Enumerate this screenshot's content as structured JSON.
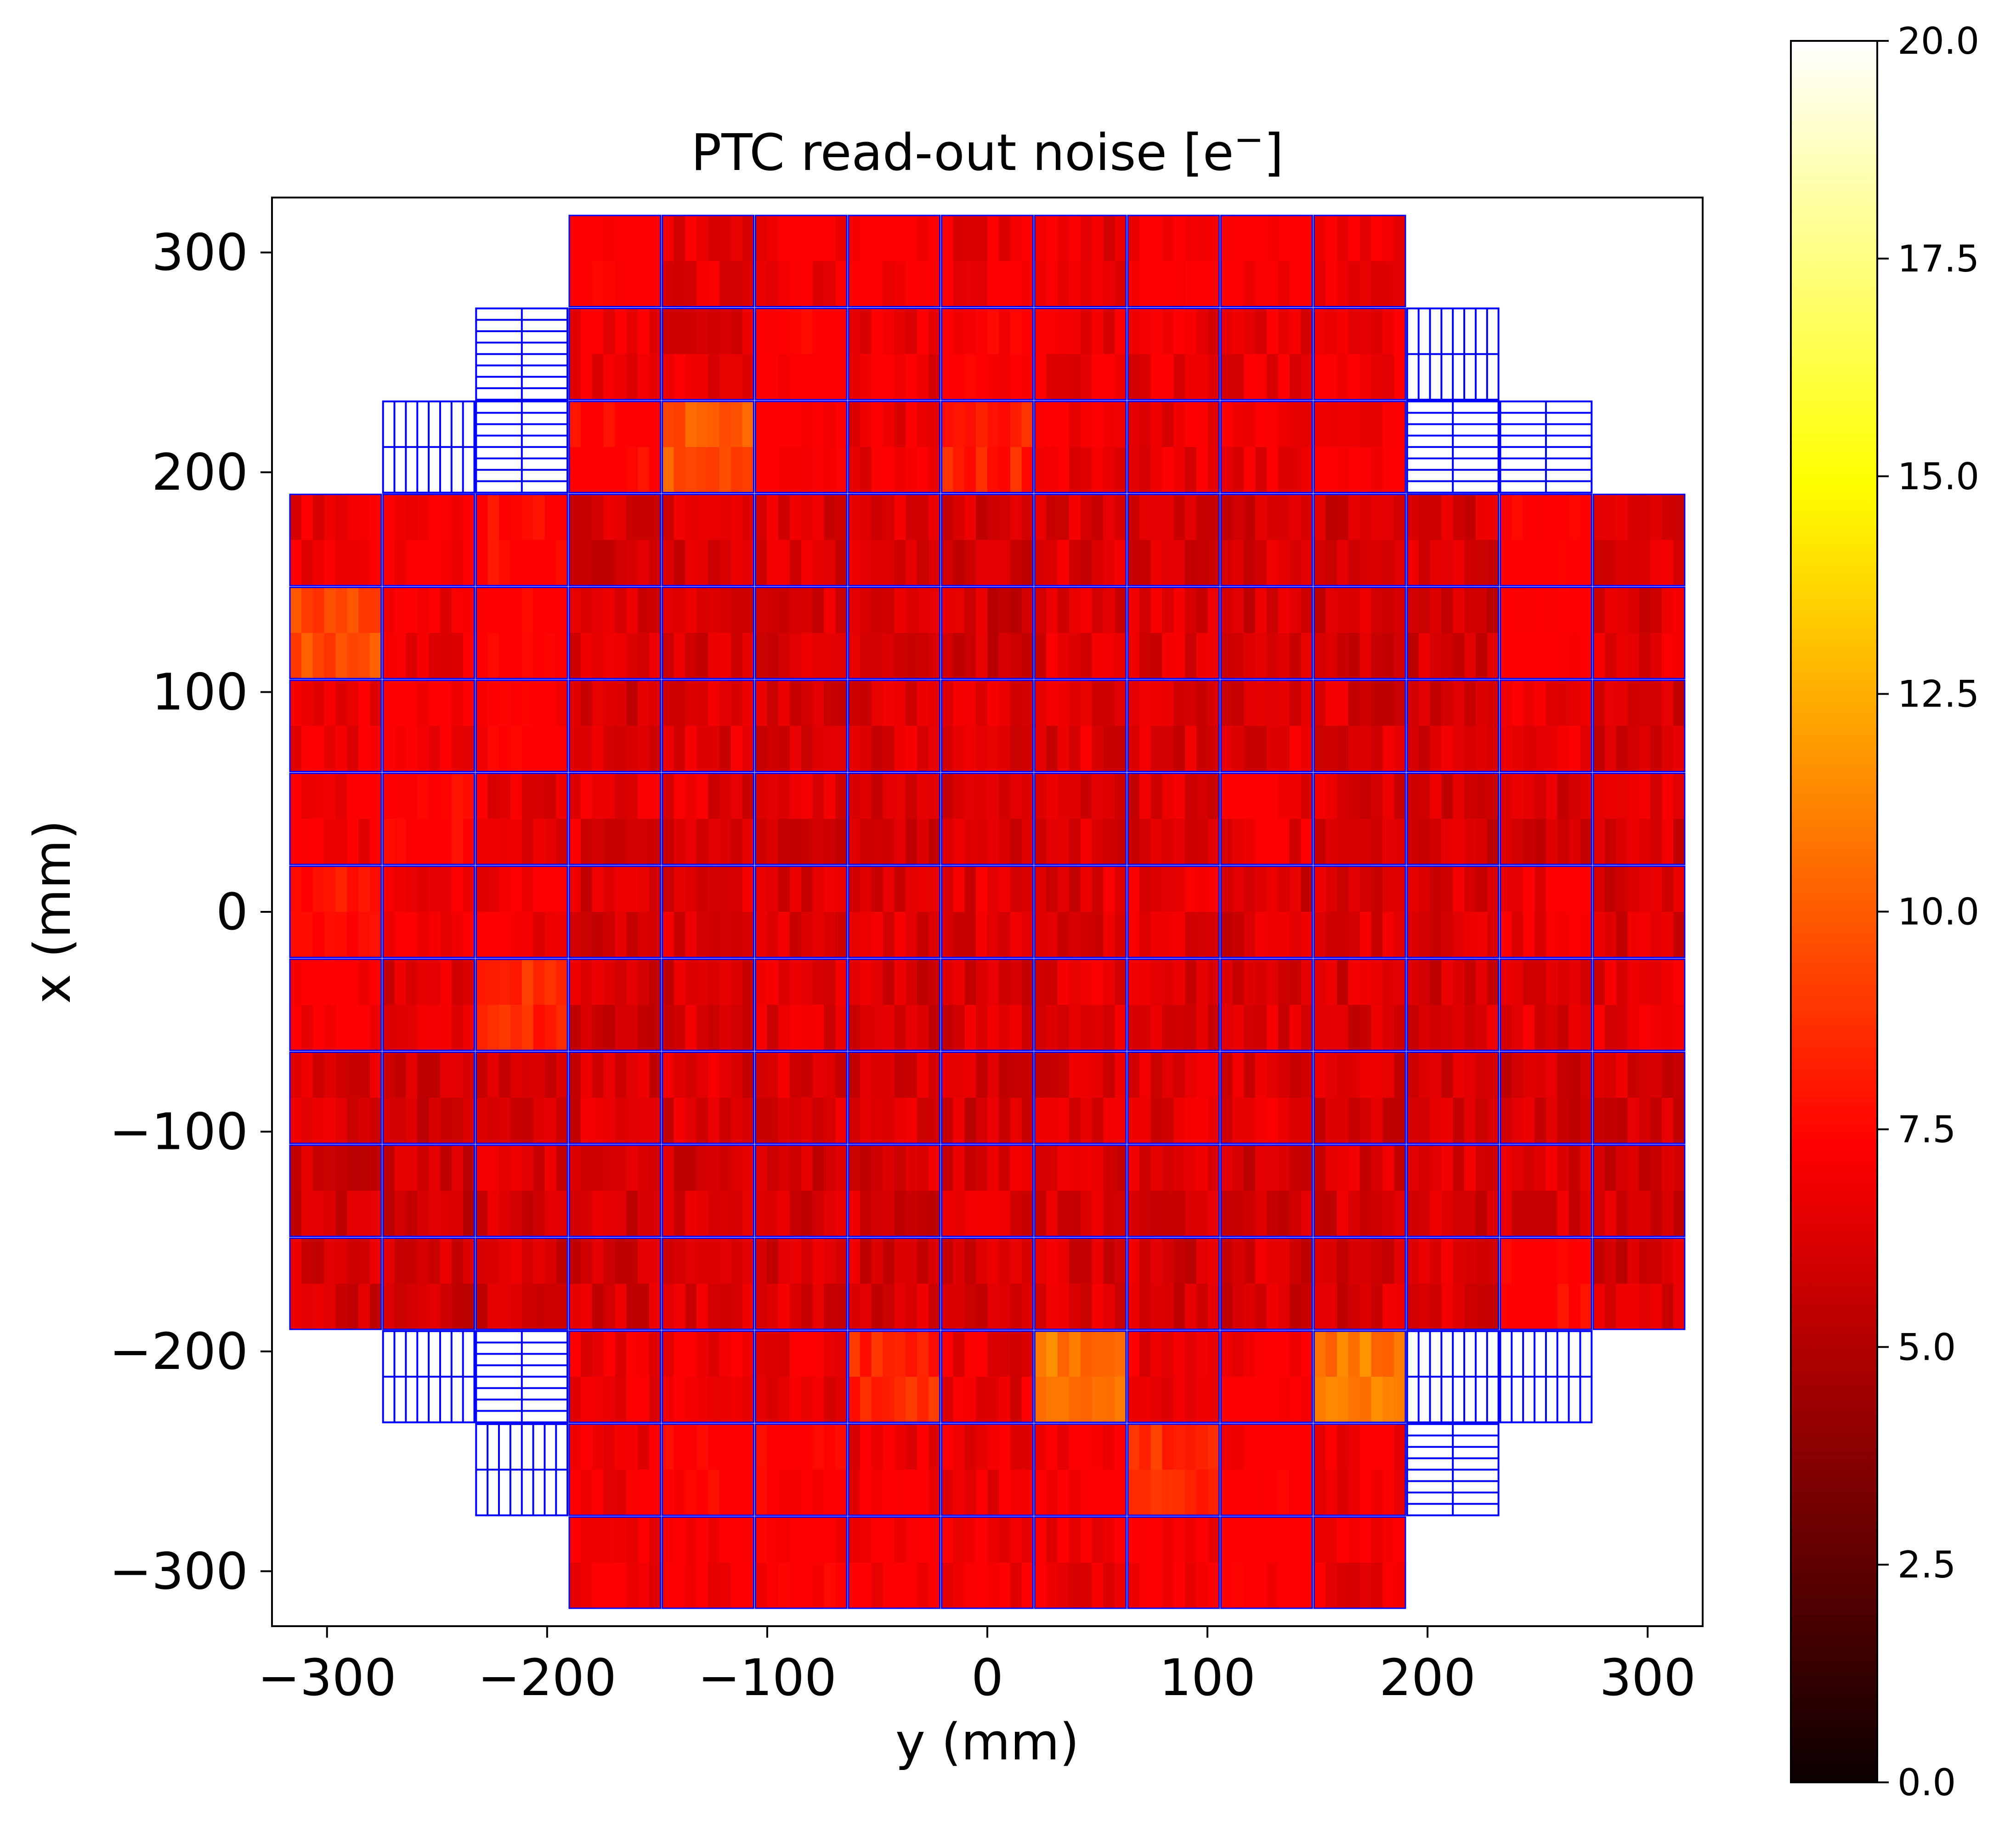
{
  "chart_data": {
    "type": "heatmap",
    "title": "PTC read-out noise [e⁻]",
    "title_text": "PTC read-out noise [e",
    "title_sup": "−",
    "title_close": "]",
    "xlabel": "y (mm)",
    "ylabel": "x (mm)",
    "xlim": [
      -325,
      325
    ],
    "ylim": [
      -325,
      325
    ],
    "xticks": [
      -300,
      -200,
      -100,
      0,
      100,
      200,
      300
    ],
    "yticks": [
      -300,
      -200,
      -100,
      0,
      100,
      200,
      300
    ],
    "xtick_labels": [
      "−300",
      "−200",
      "−100",
      "0",
      "100",
      "200",
      "300"
    ],
    "ytick_labels": [
      "−300",
      "−200",
      "−100",
      "0",
      "100",
      "200",
      "300"
    ],
    "colormap": "hot",
    "colorbar": {
      "min": 0.0,
      "max": 20.0,
      "ticks": [
        0.0,
        2.5,
        5.0,
        7.5,
        10.0,
        12.5,
        15.0,
        17.5,
        20.0
      ],
      "tick_labels": [
        "0.0",
        "2.5",
        "5.0",
        "7.5",
        "10.0",
        "12.5",
        "15.0",
        "17.5",
        "20.0"
      ]
    },
    "raft_outline_color": "#0000ff",
    "grid": false,
    "detector_pitch_mm": 42.3,
    "detector_size_mm": 41.5,
    "detector_columns_y_mm": [
      -296.1,
      -253.8,
      -211.5,
      -169.2,
      -126.9,
      -84.6,
      -42.3,
      0,
      42.3,
      84.6,
      126.9,
      169.2,
      211.5,
      253.8,
      296.1
    ],
    "detector_rows_x_mm": [
      -296.1,
      -253.8,
      -211.5,
      -169.2,
      -126.9,
      -84.6,
      -42.3,
      0,
      42.3,
      84.6,
      126.9,
      169.2,
      211.5,
      253.8,
      296.1
    ],
    "amplifier_layout": {
      "columns": 8,
      "rows": 2
    },
    "typical_noise_e": 5.8,
    "detector_noise_map_e": [
      [
        0,
        0,
        0,
        6.9,
        5.8,
        6.2,
        6.6,
        6.0,
        5.9,
        6.6,
        6.4,
        6.3,
        0,
        0,
        0
      ],
      [
        0,
        0,
        0,
        6.1,
        5.8,
        6.9,
        5.9,
        6.8,
        6.1,
        5.8,
        6.0,
        6.3,
        0,
        0,
        0
      ],
      [
        0,
        0,
        0,
        7.3,
        9.8,
        6.8,
        6.1,
        8.2,
        6.2,
        5.9,
        6.1,
        6.5,
        0,
        0,
        0
      ],
      [
        6.0,
        6.5,
        7.4,
        5.4,
        5.5,
        5.6,
        5.5,
        5.3,
        5.5,
        5.5,
        5.4,
        5.2,
        5.5,
        7.1,
        5.5
      ],
      [
        9.5,
        6.1,
        7.2,
        5.5,
        5.5,
        5.6,
        5.4,
        5.2,
        5.6,
        5.6,
        5.4,
        5.3,
        5.2,
        7.0,
        5.6
      ],
      [
        6.1,
        6.4,
        6.9,
        5.4,
        5.6,
        5.5,
        5.6,
        5.5,
        5.6,
        5.4,
        5.6,
        5.4,
        5.4,
        6.3,
        5.5
      ],
      [
        6.4,
        7.1,
        5.9,
        5.6,
        5.6,
        5.5,
        5.4,
        5.4,
        5.5,
        5.5,
        5.9,
        5.5,
        5.3,
        5.4,
        5.5
      ],
      [
        7.6,
        6.4,
        6.0,
        5.4,
        5.5,
        5.6,
        5.5,
        5.6,
        5.6,
        5.6,
        5.4,
        5.6,
        5.4,
        6.0,
        5.5
      ],
      [
        6.6,
        5.5,
        8.5,
        5.3,
        5.4,
        5.5,
        5.4,
        5.4,
        5.6,
        5.5,
        5.5,
        5.4,
        5.3,
        5.6,
        5.6
      ],
      [
        5.4,
        5.1,
        5.4,
        5.4,
        5.5,
        5.4,
        5.4,
        5.3,
        5.5,
        5.6,
        5.6,
        5.4,
        5.3,
        5.3,
        5.4
      ],
      [
        5.2,
        5.1,
        5.5,
        5.2,
        5.4,
        5.3,
        5.4,
        5.5,
        5.5,
        5.5,
        5.3,
        5.4,
        5.4,
        5.5,
        5.3
      ],
      [
        5.3,
        5.2,
        5.4,
        5.3,
        5.4,
        5.5,
        5.4,
        5.4,
        5.5,
        5.3,
        5.4,
        5.4,
        5.5,
        7.3,
        5.3
      ],
      [
        0,
        0,
        0,
        6.2,
        6.2,
        6.1,
        8.4,
        5.8,
        10.8,
        6.1,
        6.5,
        10.9,
        0,
        0,
        0
      ],
      [
        0,
        0,
        0,
        6.3,
        7.0,
        7.0,
        6.0,
        6.1,
        6.5,
        8.6,
        6.8,
        6.3,
        0,
        0,
        0
      ],
      [
        0,
        0,
        0,
        6.4,
        6.5,
        6.8,
        6.5,
        6.2,
        6.1,
        6.4,
        6.8,
        5.9,
        0,
        0,
        0
      ]
    ],
    "corner_wavefront_sensors_note": "",
    "corner_positions_mm": [
      {
        "y": -253.8,
        "x": 211.5
      },
      {
        "y": -211.5,
        "x": 253.8
      },
      {
        "y": -211.5,
        "x": 211.5
      },
      {
        "y": 211.5,
        "x": 253.8
      },
      {
        "y": 211.5,
        "x": 211.5
      },
      {
        "y": 253.8,
        "x": 211.5
      },
      {
        "y": -253.8,
        "x": -211.5
      },
      {
        "y": -211.5,
        "x": -211.5
      },
      {
        "y": -211.5,
        "x": -253.8
      },
      {
        "y": 211.5,
        "x": -211.5
      },
      {
        "y": 211.5,
        "x": -253.8
      },
      {
        "y": 253.8,
        "x": -211.5
      }
    ]
  }
}
